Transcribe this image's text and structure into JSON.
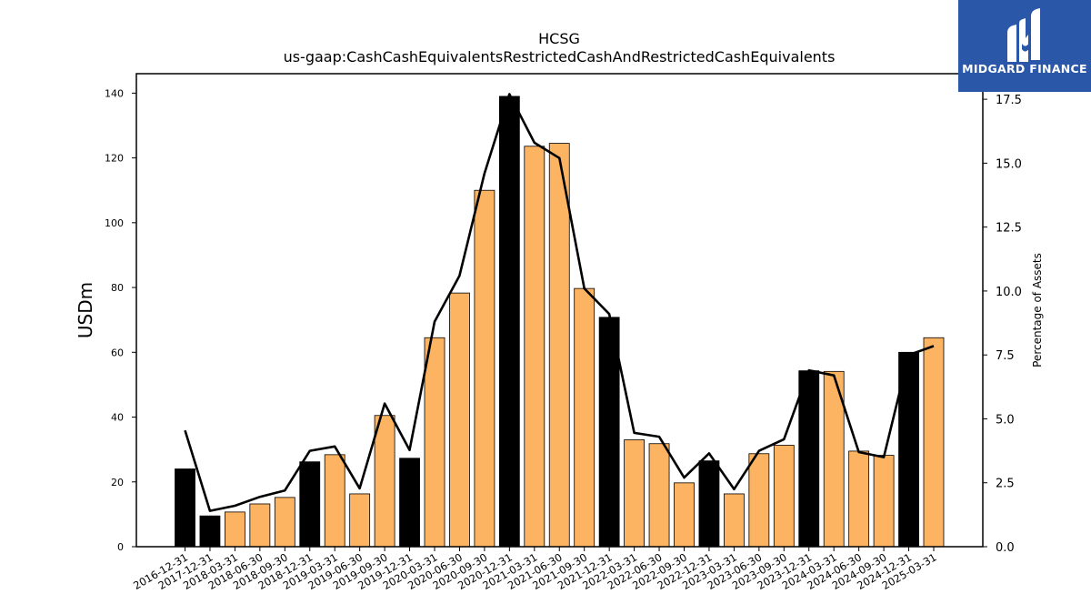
{
  "chart_data": {
    "type": "bar",
    "title": "HCSG",
    "subtitle": "us-gaap:CashCashEquivalentsRestrictedCashAndRestrictedCashEquivalents",
    "ylabel": "USDm",
    "y2label": "Percentage of Assets",
    "ylim": [
      0,
      146
    ],
    "y2lim": [
      0,
      18.5
    ],
    "yticks": [
      0,
      20,
      40,
      60,
      80,
      100,
      120,
      140
    ],
    "y2ticks": [
      0.0,
      2.5,
      5.0,
      7.5,
      10.0,
      12.5,
      15.0,
      17.5
    ],
    "categories": [
      "2016-12-31",
      "2017-12-31",
      "2018-03-31",
      "2018-06-30",
      "2018-09-30",
      "2018-12-31",
      "2019-03-31",
      "2019-06-30",
      "2019-09-30",
      "2019-12-31",
      "2020-03-31",
      "2020-06-30",
      "2020-09-30",
      "2020-12-31",
      "2021-03-31",
      "2021-06-30",
      "2021-09-30",
      "2021-12-31",
      "2022-03-31",
      "2022-06-30",
      "2022-09-30",
      "2022-12-31",
      "2023-03-31",
      "2023-06-30",
      "2023-09-30",
      "2023-12-31",
      "2024-03-31",
      "2024-06-30",
      "2024-09-30",
      "2024-12-31",
      "2025-03-31"
    ],
    "series": [
      {
        "type": "bar",
        "values": [
          24,
          9.5,
          10.7,
          13.2,
          15.2,
          26.2,
          28.4,
          16.3,
          40.5,
          27.3,
          64.5,
          78.3,
          110,
          139,
          123.6,
          124.5,
          79.7,
          70.8,
          33,
          31.8,
          19.7,
          26.5,
          16.3,
          28.7,
          31.3,
          54.3,
          54.1,
          29.5,
          28.2,
          60,
          64.5
        ],
        "colors": [
          "#000000",
          "#000000",
          "#fdb462",
          "#fdb462",
          "#fdb462",
          "#000000",
          "#fdb462",
          "#fdb462",
          "#fdb462",
          "#000000",
          "#fdb462",
          "#fdb462",
          "#fdb462",
          "#000000",
          "#fdb462",
          "#fdb462",
          "#fdb462",
          "#000000",
          "#fdb462",
          "#fdb462",
          "#fdb462",
          "#000000",
          "#fdb462",
          "#fdb462",
          "#fdb462",
          "#000000",
          "#fdb462",
          "#fdb462",
          "#fdb462",
          "#000000",
          "#fdb462"
        ]
      },
      {
        "type": "line",
        "axis": "right",
        "values": [
          4.55,
          1.4,
          1.6,
          1.95,
          2.2,
          3.75,
          3.92,
          2.28,
          5.6,
          3.78,
          8.8,
          10.6,
          14.6,
          17.7,
          15.8,
          15.2,
          10.1,
          9.1,
          4.45,
          4.3,
          2.7,
          3.65,
          2.25,
          3.75,
          4.2,
          6.9,
          6.7,
          3.7,
          3.5,
          7.5,
          7.85
        ],
        "color": "#000000"
      }
    ],
    "grid": false,
    "legend": "none"
  },
  "logo": {
    "text": "MIDGARD FINANCE",
    "background": "#2a57a8"
  }
}
